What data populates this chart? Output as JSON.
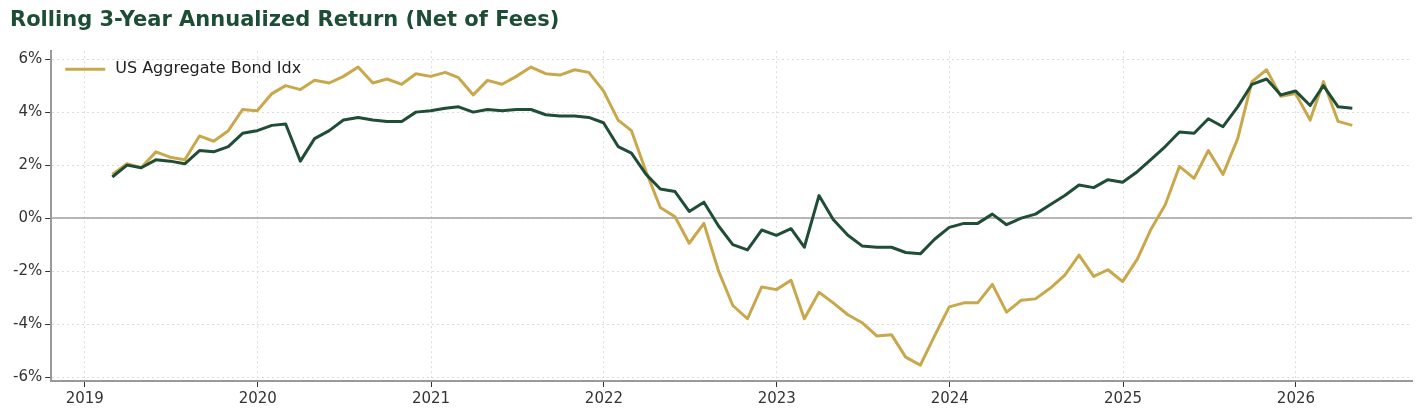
{
  "chart_data": {
    "type": "line",
    "title": "Rolling 3-Year Annualized Return (Net of Fees)",
    "x": [
      "2019-02-28",
      "2019-03-31",
      "2019-04-30",
      "2019-05-31",
      "2019-06-30",
      "2019-07-31",
      "2019-08-31",
      "2019-09-30",
      "2019-10-31",
      "2019-11-30",
      "2019-12-31",
      "2020-01-31",
      "2020-02-29",
      "2020-03-31",
      "2020-04-30",
      "2020-05-31",
      "2020-06-30",
      "2020-07-31",
      "2020-08-31",
      "2020-09-30",
      "2020-10-31",
      "2020-11-30",
      "2020-12-31",
      "2021-01-31",
      "2021-02-28",
      "2021-03-31",
      "2021-04-30",
      "2021-05-31",
      "2021-06-30",
      "2021-07-31",
      "2021-08-31",
      "2021-09-30",
      "2021-10-31",
      "2021-11-30",
      "2021-12-31",
      "2022-01-31",
      "2022-02-28",
      "2022-03-31",
      "2022-04-30",
      "2022-05-31",
      "2022-06-30",
      "2022-07-31",
      "2022-08-31",
      "2022-09-30",
      "2022-10-31",
      "2022-11-30",
      "2022-12-31",
      "2023-01-31",
      "2023-02-28",
      "2023-03-31",
      "2023-04-30",
      "2023-05-31",
      "2023-06-30",
      "2023-07-31",
      "2023-08-31",
      "2023-09-30",
      "2023-10-31",
      "2023-11-30",
      "2023-12-31",
      "2024-01-31",
      "2024-02-29",
      "2024-03-31",
      "2024-04-30",
      "2024-05-31",
      "2024-06-30",
      "2024-07-31",
      "2024-08-31",
      "2024-09-30",
      "2024-10-31",
      "2024-11-30",
      "2024-12-31",
      "2025-01-31",
      "2025-02-28",
      "2025-03-31",
      "2025-04-30",
      "2025-05-31",
      "2025-06-30",
      "2025-07-31",
      "2025-08-31",
      "2025-09-30",
      "2025-10-31",
      "2025-11-30",
      "2025-12-31",
      "2026-01-31",
      "2026-02-28",
      "2026-03-31",
      "2026-04-30"
    ],
    "series": [
      {
        "color": "#1f4d36",
        "values": [
          1.55,
          2.0,
          1.9,
          2.2,
          2.15,
          2.05,
          2.55,
          2.5,
          2.7,
          3.2,
          3.3,
          3.5,
          3.55,
          2.15,
          3.0,
          3.3,
          3.7,
          3.8,
          3.7,
          3.65,
          3.65,
          4.0,
          4.05,
          4.15,
          4.2,
          4.0,
          4.1,
          4.05,
          4.1,
          4.1,
          3.9,
          3.85,
          3.85,
          3.8,
          3.6,
          2.7,
          2.45,
          1.65,
          1.1,
          1.0,
          0.25,
          0.6,
          -0.3,
          -1.0,
          -1.2,
          -0.45,
          -0.65,
          -0.4,
          -1.1,
          0.85,
          -0.05,
          -0.65,
          -1.05,
          -1.1,
          -1.1,
          -1.3,
          -1.35,
          -0.8,
          -0.35,
          -0.2,
          -0.2,
          0.15,
          -0.25,
          0.0,
          0.15,
          0.5,
          0.85,
          1.25,
          1.15,
          1.45,
          1.35,
          1.75,
          2.2,
          2.7,
          3.25,
          3.2,
          3.75,
          3.45,
          4.2,
          5.05,
          5.25,
          4.65,
          4.8,
          4.25,
          5.0,
          4.2,
          4.15
        ]
      },
      {
        "name": "US Aggregate Bond Idx",
        "color": "#c9a84c",
        "values": [
          1.65,
          2.05,
          1.9,
          2.5,
          2.3,
          2.2,
          3.1,
          2.9,
          3.3,
          4.1,
          4.05,
          4.7,
          5.0,
          4.85,
          5.2,
          5.1,
          5.35,
          5.7,
          5.1,
          5.25,
          5.05,
          5.45,
          5.35,
          5.5,
          5.3,
          4.65,
          5.2,
          5.05,
          5.35,
          5.7,
          5.45,
          5.4,
          5.6,
          5.5,
          4.8,
          3.7,
          3.3,
          1.75,
          0.4,
          0.05,
          -0.95,
          -0.2,
          -2.0,
          -3.3,
          -3.8,
          -2.6,
          -2.7,
          -2.35,
          -3.8,
          -2.8,
          -3.2,
          -3.65,
          -3.95,
          -4.45,
          -4.4,
          -5.25,
          -5.55,
          -4.45,
          -3.35,
          -3.2,
          -3.2,
          -2.5,
          -3.55,
          -3.1,
          -3.05,
          -2.65,
          -2.15,
          -1.4,
          -2.2,
          -1.95,
          -2.4,
          -1.55,
          -0.45,
          0.5,
          1.95,
          1.5,
          2.55,
          1.65,
          3.0,
          5.15,
          5.6,
          4.6,
          4.7,
          3.7,
          5.15,
          3.65,
          3.5
        ]
      }
    ],
    "xlim": [
      "2018-10-22",
      "2026-09-03"
    ],
    "xticks": [
      {
        "value": "2019",
        "label": "2019"
      },
      {
        "value": "2020",
        "label": "2020"
      },
      {
        "value": "2021",
        "label": "2021"
      },
      {
        "value": "2022",
        "label": "2022"
      },
      {
        "value": "2023",
        "label": "2023"
      },
      {
        "value": "2024",
        "label": "2024"
      },
      {
        "value": "2025",
        "label": "2025"
      },
      {
        "value": "2026",
        "label": "2026"
      }
    ],
    "ylim": [
      -6.15,
      6.3
    ],
    "yticks": [
      {
        "value": -6,
        "label": "-6%"
      },
      {
        "value": -4,
        "label": "-4%"
      },
      {
        "value": -2,
        "label": "-2%"
      },
      {
        "value": 0,
        "label": "0%"
      },
      {
        "value": 2,
        "label": "2%"
      },
      {
        "value": 4,
        "label": "4%"
      },
      {
        "value": 6,
        "label": "6%"
      }
    ],
    "ref_lines": [
      {
        "axis": "y",
        "value": 0,
        "color": "#a0a0a0"
      }
    ],
    "grid": true,
    "legend": "top left",
    "marker": "none",
    "line_style": "solid"
  }
}
